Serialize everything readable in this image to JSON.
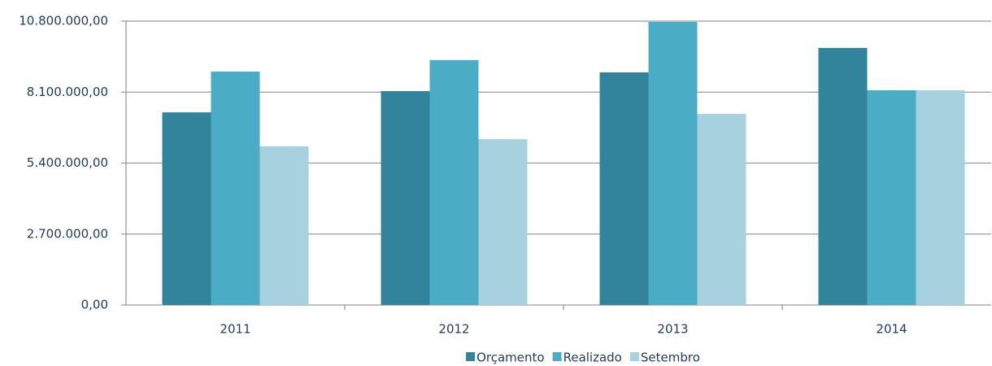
{
  "chart_data": {
    "type": "bar",
    "categories": [
      "2011",
      "2012",
      "2013",
      "2014"
    ],
    "series": [
      {
        "name": "Orçamento",
        "color": "#31849b",
        "values": [
          7330000,
          8140000,
          8850000,
          9780000
        ]
      },
      {
        "name": "Realizado",
        "color": "#4bacc6",
        "values": [
          8880000,
          9320000,
          10770000,
          8170000
        ]
      },
      {
        "name": "Setembro",
        "color": "#a8d1df",
        "values": [
          6040000,
          6310000,
          7270000,
          8170000
        ]
      }
    ],
    "ylim": [
      0,
      10800000
    ],
    "yticks": [
      {
        "value": 0,
        "label": "0,00"
      },
      {
        "value": 2700000,
        "label": "2.700.000,00"
      },
      {
        "value": 5400000,
        "label": "5.400.000,00"
      },
      {
        "value": 8100000,
        "label": "8.100.000,00"
      },
      {
        "value": 10800000,
        "label": "10.800.000,00"
      }
    ],
    "grid": true,
    "legend": "bottom"
  }
}
